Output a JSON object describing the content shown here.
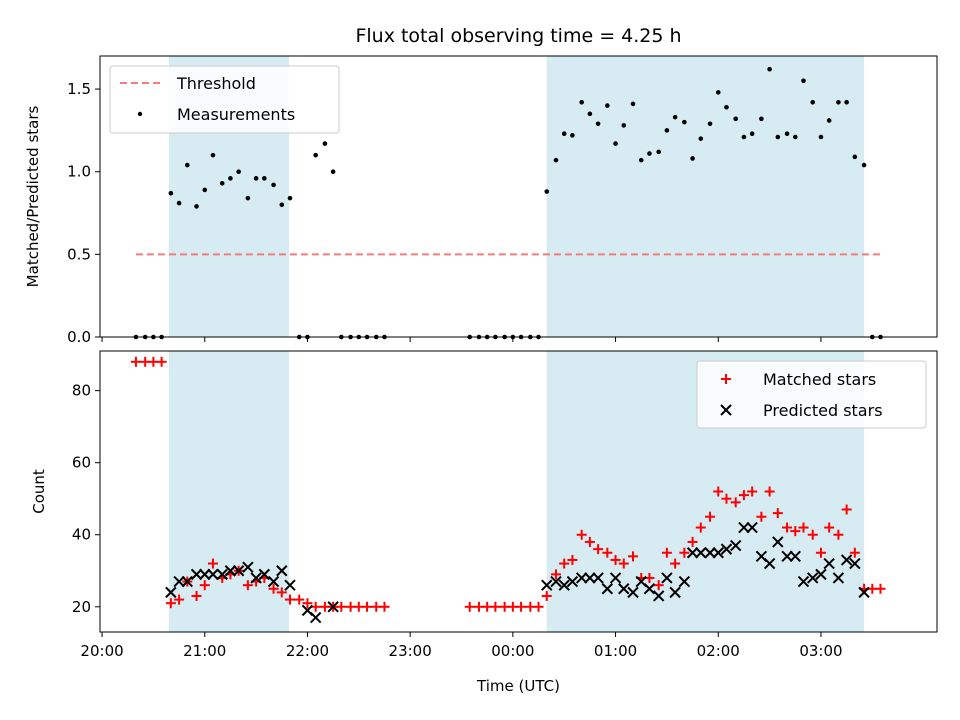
{
  "chart_data": [
    {
      "type": "scatter",
      "title": "Flux total observing time = 4.25 h",
      "xlabel": "",
      "ylabel": "Matched/Predicted stars",
      "ylim": [
        0,
        1.7
      ],
      "yticks": [
        "0.0",
        "0.5",
        "1.0",
        "1.5"
      ],
      "ytick_values": [
        0,
        0.5,
        1.0,
        1.5
      ],
      "legend": {
        "placement": "top-left",
        "entries": [
          "Threshold",
          "Measurements"
        ]
      },
      "threshold": {
        "name": "Threshold",
        "value": 0.5,
        "x_start": 20.33,
        "x_end": 27.6,
        "color": "#f47c7c"
      },
      "observing_windows": [
        [
          20.65,
          21.82
        ],
        [
          24.33,
          27.42
        ]
      ],
      "series": [
        {
          "name": "Measurements",
          "color": "#000000",
          "x": [
            20.33,
            20.42,
            20.5,
            20.58,
            20.67,
            20.75,
            20.83,
            20.92,
            21.0,
            21.08,
            21.17,
            21.25,
            21.33,
            21.42,
            21.5,
            21.58,
            21.67,
            21.75,
            21.83,
            21.92,
            22.0,
            22.08,
            22.17,
            22.25,
            22.33,
            22.42,
            22.5,
            22.58,
            22.67,
            22.75,
            23.58,
            23.67,
            23.75,
            23.83,
            23.92,
            24.0,
            24.08,
            24.17,
            24.25,
            24.33,
            24.42,
            24.5,
            24.58,
            24.67,
            24.75,
            24.83,
            24.92,
            25.0,
            25.08,
            25.17,
            25.25,
            25.33,
            25.42,
            25.5,
            25.58,
            25.67,
            25.75,
            25.83,
            25.92,
            26.0,
            26.08,
            26.17,
            26.25,
            26.33,
            26.42,
            26.5,
            26.58,
            26.67,
            26.75,
            26.83,
            26.92,
            27.0,
            27.08,
            27.17,
            27.25,
            27.33,
            27.42,
            27.5,
            27.58
          ],
          "y": [
            0,
            0,
            0,
            0,
            0.87,
            0.81,
            1.04,
            0.79,
            0.89,
            1.1,
            0.93,
            0.96,
            1.0,
            0.84,
            0.96,
            0.96,
            0.92,
            0.8,
            0.84,
            0,
            0,
            1.1,
            1.17,
            1.0,
            0,
            0,
            0,
            0,
            0,
            0,
            0,
            0,
            0,
            0,
            0,
            0,
            0,
            0,
            0,
            0.88,
            1.07,
            1.23,
            1.22,
            1.42,
            1.35,
            1.29,
            1.4,
            1.17,
            1.28,
            1.41,
            1.07,
            1.11,
            1.12,
            1.25,
            1.33,
            1.3,
            1.08,
            1.2,
            1.29,
            1.48,
            1.39,
            1.32,
            1.21,
            1.23,
            1.32,
            1.62,
            1.21,
            1.23,
            1.21,
            1.55,
            1.42,
            1.21,
            1.31,
            1.42,
            1.42,
            1.09,
            1.04,
            0,
            0
          ]
        }
      ]
    },
    {
      "type": "scatter",
      "title": "",
      "xlabel": "Time (UTC)",
      "ylabel": "Count",
      "ylim": [
        13,
        91
      ],
      "yticks": [
        "20",
        "40",
        "60",
        "80"
      ],
      "ytick_values": [
        20,
        40,
        60,
        80
      ],
      "xlim": [
        19.98,
        28.13
      ],
      "xticks": [
        "20:00",
        "21:00",
        "22:00",
        "23:00",
        "00:00",
        "01:00",
        "02:00",
        "03:00"
      ],
      "xtick_values": [
        20,
        21,
        22,
        23,
        24,
        25,
        26,
        27
      ],
      "legend": {
        "placement": "top-right",
        "entries": [
          "Matched stars",
          "Predicted stars"
        ]
      },
      "observing_windows": [
        [
          20.65,
          21.82
        ],
        [
          24.33,
          27.42
        ]
      ],
      "series": [
        {
          "name": "Matched stars",
          "marker": "plus",
          "color": "#ff0000",
          "x": [
            20.33,
            20.42,
            20.5,
            20.58,
            20.67,
            20.75,
            20.83,
            20.92,
            21.0,
            21.08,
            21.17,
            21.25,
            21.33,
            21.42,
            21.5,
            21.58,
            21.67,
            21.75,
            21.83,
            21.92,
            22.0,
            22.08,
            22.17,
            22.25,
            22.33,
            22.42,
            22.5,
            22.58,
            22.67,
            22.75,
            23.58,
            23.67,
            23.75,
            23.83,
            23.92,
            24.0,
            24.08,
            24.17,
            24.25,
            24.33,
            24.42,
            24.5,
            24.58,
            24.67,
            24.75,
            24.83,
            24.92,
            25.0,
            25.08,
            25.17,
            25.25,
            25.33,
            25.42,
            25.5,
            25.58,
            25.67,
            25.75,
            25.83,
            25.92,
            26.0,
            26.08,
            26.17,
            26.25,
            26.33,
            26.42,
            26.5,
            26.58,
            26.67,
            26.75,
            26.83,
            26.92,
            27.0,
            27.08,
            27.17,
            27.25,
            27.33,
            27.42,
            27.5,
            27.58
          ],
          "y": [
            88,
            88,
            88,
            88,
            21,
            22,
            27,
            23,
            26,
            32,
            28,
            29,
            30,
            26,
            27,
            28,
            25,
            24,
            22,
            22,
            21,
            20,
            20,
            20,
            20,
            20,
            20,
            20,
            20,
            20,
            20,
            20,
            20,
            20,
            20,
            20,
            20,
            20,
            20,
            23,
            29,
            32,
            33,
            40,
            38,
            36,
            35,
            33,
            32,
            34,
            28,
            28,
            26,
            35,
            32,
            35,
            38,
            42,
            45,
            52,
            50,
            49,
            51,
            52,
            45,
            52,
            46,
            42,
            41,
            42,
            40,
            35,
            42,
            40,
            47,
            35,
            25,
            25,
            25
          ]
        },
        {
          "name": "Predicted stars",
          "marker": "x",
          "color": "#000000",
          "x": [
            20.67,
            20.75,
            20.83,
            20.92,
            21.0,
            21.08,
            21.17,
            21.25,
            21.33,
            21.42,
            21.5,
            21.58,
            21.67,
            21.75,
            21.83,
            22.0,
            22.08,
            22.25,
            24.33,
            24.42,
            24.5,
            24.58,
            24.67,
            24.75,
            24.83,
            24.92,
            25.0,
            25.08,
            25.17,
            25.25,
            25.33,
            25.42,
            25.5,
            25.58,
            25.67,
            25.75,
            25.83,
            25.92,
            26.0,
            26.08,
            26.17,
            26.25,
            26.33,
            26.42,
            26.5,
            26.58,
            26.67,
            26.75,
            26.83,
            26.92,
            27.0,
            27.08,
            27.17,
            27.25,
            27.33,
            27.42
          ],
          "y": [
            24,
            27,
            27,
            29,
            29,
            29,
            29,
            30,
            30,
            31,
            28,
            29,
            27,
            30,
            26,
            19,
            17,
            20,
            26,
            27,
            26,
            27,
            28,
            28,
            28,
            25,
            28,
            25,
            24,
            27,
            25,
            23,
            28,
            24,
            27,
            35,
            35,
            35,
            35,
            36,
            37,
            42,
            42,
            34,
            32,
            38,
            34,
            34,
            27,
            28,
            29,
            32,
            28,
            33,
            32,
            24
          ]
        }
      ]
    }
  ]
}
